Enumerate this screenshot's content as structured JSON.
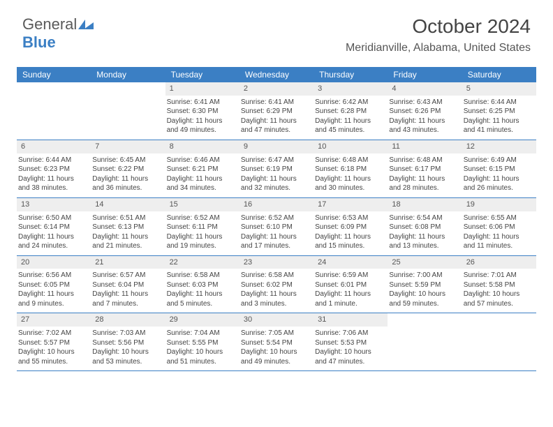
{
  "logo": {
    "part1": "General",
    "part2": "Blue"
  },
  "title": "October 2024",
  "subtitle": "Meridianville, Alabama, United States",
  "header_bg": "#3b7fc4",
  "day_headers": [
    "Sunday",
    "Monday",
    "Tuesday",
    "Wednesday",
    "Thursday",
    "Friday",
    "Saturday"
  ],
  "weeks": [
    [
      null,
      null,
      {
        "n": "1",
        "sunrise": "Sunrise: 6:41 AM",
        "sunset": "Sunset: 6:30 PM",
        "d1": "Daylight: 11 hours",
        "d2": "and 49 minutes."
      },
      {
        "n": "2",
        "sunrise": "Sunrise: 6:41 AM",
        "sunset": "Sunset: 6:29 PM",
        "d1": "Daylight: 11 hours",
        "d2": "and 47 minutes."
      },
      {
        "n": "3",
        "sunrise": "Sunrise: 6:42 AM",
        "sunset": "Sunset: 6:28 PM",
        "d1": "Daylight: 11 hours",
        "d2": "and 45 minutes."
      },
      {
        "n": "4",
        "sunrise": "Sunrise: 6:43 AM",
        "sunset": "Sunset: 6:26 PM",
        "d1": "Daylight: 11 hours",
        "d2": "and 43 minutes."
      },
      {
        "n": "5",
        "sunrise": "Sunrise: 6:44 AM",
        "sunset": "Sunset: 6:25 PM",
        "d1": "Daylight: 11 hours",
        "d2": "and 41 minutes."
      }
    ],
    [
      {
        "n": "6",
        "sunrise": "Sunrise: 6:44 AM",
        "sunset": "Sunset: 6:23 PM",
        "d1": "Daylight: 11 hours",
        "d2": "and 38 minutes."
      },
      {
        "n": "7",
        "sunrise": "Sunrise: 6:45 AM",
        "sunset": "Sunset: 6:22 PM",
        "d1": "Daylight: 11 hours",
        "d2": "and 36 minutes."
      },
      {
        "n": "8",
        "sunrise": "Sunrise: 6:46 AM",
        "sunset": "Sunset: 6:21 PM",
        "d1": "Daylight: 11 hours",
        "d2": "and 34 minutes."
      },
      {
        "n": "9",
        "sunrise": "Sunrise: 6:47 AM",
        "sunset": "Sunset: 6:19 PM",
        "d1": "Daylight: 11 hours",
        "d2": "and 32 minutes."
      },
      {
        "n": "10",
        "sunrise": "Sunrise: 6:48 AM",
        "sunset": "Sunset: 6:18 PM",
        "d1": "Daylight: 11 hours",
        "d2": "and 30 minutes."
      },
      {
        "n": "11",
        "sunrise": "Sunrise: 6:48 AM",
        "sunset": "Sunset: 6:17 PM",
        "d1": "Daylight: 11 hours",
        "d2": "and 28 minutes."
      },
      {
        "n": "12",
        "sunrise": "Sunrise: 6:49 AM",
        "sunset": "Sunset: 6:15 PM",
        "d1": "Daylight: 11 hours",
        "d2": "and 26 minutes."
      }
    ],
    [
      {
        "n": "13",
        "sunrise": "Sunrise: 6:50 AM",
        "sunset": "Sunset: 6:14 PM",
        "d1": "Daylight: 11 hours",
        "d2": "and 24 minutes."
      },
      {
        "n": "14",
        "sunrise": "Sunrise: 6:51 AM",
        "sunset": "Sunset: 6:13 PM",
        "d1": "Daylight: 11 hours",
        "d2": "and 21 minutes."
      },
      {
        "n": "15",
        "sunrise": "Sunrise: 6:52 AM",
        "sunset": "Sunset: 6:11 PM",
        "d1": "Daylight: 11 hours",
        "d2": "and 19 minutes."
      },
      {
        "n": "16",
        "sunrise": "Sunrise: 6:52 AM",
        "sunset": "Sunset: 6:10 PM",
        "d1": "Daylight: 11 hours",
        "d2": "and 17 minutes."
      },
      {
        "n": "17",
        "sunrise": "Sunrise: 6:53 AM",
        "sunset": "Sunset: 6:09 PM",
        "d1": "Daylight: 11 hours",
        "d2": "and 15 minutes."
      },
      {
        "n": "18",
        "sunrise": "Sunrise: 6:54 AM",
        "sunset": "Sunset: 6:08 PM",
        "d1": "Daylight: 11 hours",
        "d2": "and 13 minutes."
      },
      {
        "n": "19",
        "sunrise": "Sunrise: 6:55 AM",
        "sunset": "Sunset: 6:06 PM",
        "d1": "Daylight: 11 hours",
        "d2": "and 11 minutes."
      }
    ],
    [
      {
        "n": "20",
        "sunrise": "Sunrise: 6:56 AM",
        "sunset": "Sunset: 6:05 PM",
        "d1": "Daylight: 11 hours",
        "d2": "and 9 minutes."
      },
      {
        "n": "21",
        "sunrise": "Sunrise: 6:57 AM",
        "sunset": "Sunset: 6:04 PM",
        "d1": "Daylight: 11 hours",
        "d2": "and 7 minutes."
      },
      {
        "n": "22",
        "sunrise": "Sunrise: 6:58 AM",
        "sunset": "Sunset: 6:03 PM",
        "d1": "Daylight: 11 hours",
        "d2": "and 5 minutes."
      },
      {
        "n": "23",
        "sunrise": "Sunrise: 6:58 AM",
        "sunset": "Sunset: 6:02 PM",
        "d1": "Daylight: 11 hours",
        "d2": "and 3 minutes."
      },
      {
        "n": "24",
        "sunrise": "Sunrise: 6:59 AM",
        "sunset": "Sunset: 6:01 PM",
        "d1": "Daylight: 11 hours",
        "d2": "and 1 minute."
      },
      {
        "n": "25",
        "sunrise": "Sunrise: 7:00 AM",
        "sunset": "Sunset: 5:59 PM",
        "d1": "Daylight: 10 hours",
        "d2": "and 59 minutes."
      },
      {
        "n": "26",
        "sunrise": "Sunrise: 7:01 AM",
        "sunset": "Sunset: 5:58 PM",
        "d1": "Daylight: 10 hours",
        "d2": "and 57 minutes."
      }
    ],
    [
      {
        "n": "27",
        "sunrise": "Sunrise: 7:02 AM",
        "sunset": "Sunset: 5:57 PM",
        "d1": "Daylight: 10 hours",
        "d2": "and 55 minutes."
      },
      {
        "n": "28",
        "sunrise": "Sunrise: 7:03 AM",
        "sunset": "Sunset: 5:56 PM",
        "d1": "Daylight: 10 hours",
        "d2": "and 53 minutes."
      },
      {
        "n": "29",
        "sunrise": "Sunrise: 7:04 AM",
        "sunset": "Sunset: 5:55 PM",
        "d1": "Daylight: 10 hours",
        "d2": "and 51 minutes."
      },
      {
        "n": "30",
        "sunrise": "Sunrise: 7:05 AM",
        "sunset": "Sunset: 5:54 PM",
        "d1": "Daylight: 10 hours",
        "d2": "and 49 minutes."
      },
      {
        "n": "31",
        "sunrise": "Sunrise: 7:06 AM",
        "sunset": "Sunset: 5:53 PM",
        "d1": "Daylight: 10 hours",
        "d2": "and 47 minutes."
      },
      null,
      null
    ]
  ]
}
